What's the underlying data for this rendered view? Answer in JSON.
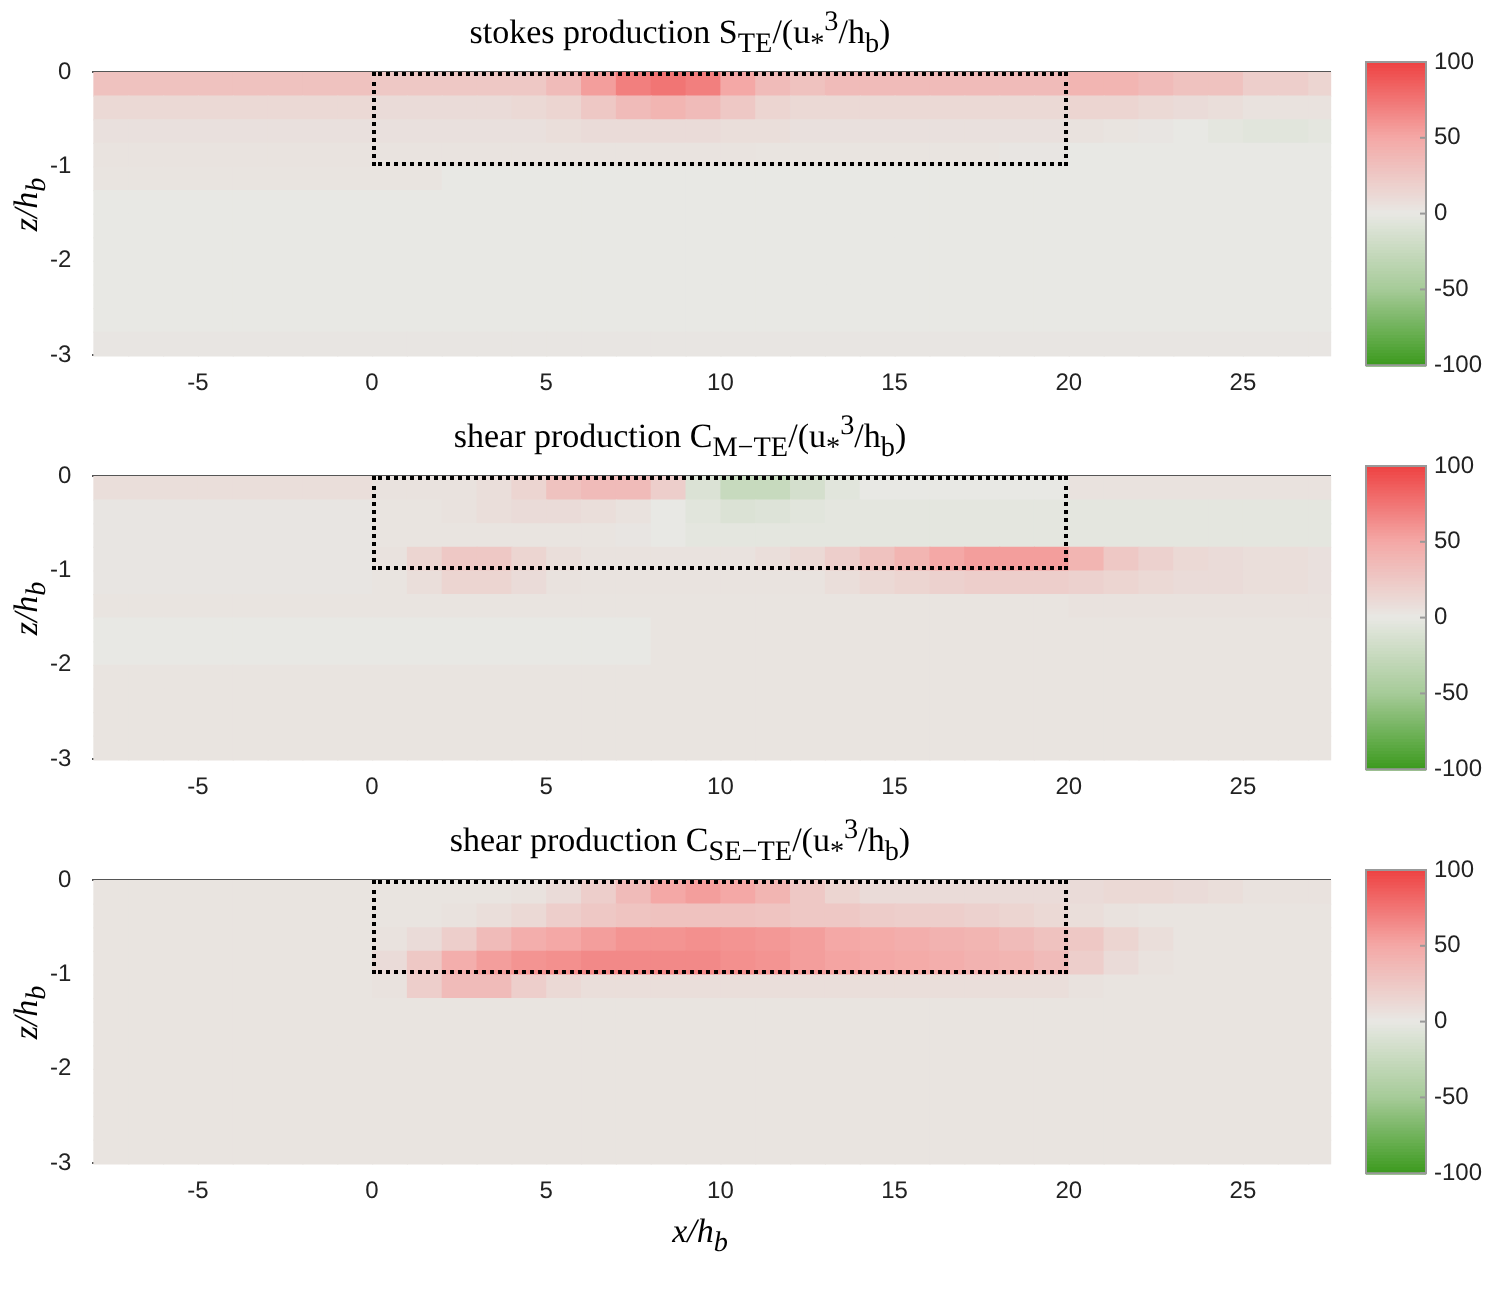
{
  "chart_data": [
    {
      "type": "heatmap",
      "title": "stokes production S$_{TE}$/(u$_{*}$$^{3}$/h$_{b}$)",
      "ylabel": "z/h$_{b}$",
      "x": [
        -7.5,
        -6.5,
        -5.5,
        -4.5,
        -3.5,
        -2.5,
        -1.5,
        -0.5,
        0.5,
        1.5,
        2.5,
        3.5,
        4.5,
        5.5,
        6.5,
        7.5,
        8.5,
        9.5,
        10.5,
        11.5,
        12.5,
        13.5,
        14.5,
        15.5,
        16.5,
        17.5,
        18.5,
        19.5,
        20.5,
        21.5,
        22.5,
        23.5,
        24.5,
        25.5,
        26.5,
        27.25
      ],
      "y": [
        -0.125,
        -0.375,
        -0.625,
        -0.875,
        -1.125,
        -1.375,
        -1.625,
        -1.875,
        -2.125,
        -2.375,
        -2.625,
        -2.875
      ],
      "cells": [
        [
          30,
          30,
          30,
          30,
          30,
          30,
          30,
          30,
          25,
          25,
          25,
          25,
          25,
          35,
          55,
          70,
          75,
          70,
          50,
          35,
          30,
          35,
          35,
          35,
          35,
          35,
          35,
          35,
          40,
          40,
          35,
          30,
          30,
          20,
          20,
          15
        ],
        [
          12,
          12,
          12,
          12,
          12,
          12,
          12,
          12,
          10,
          10,
          10,
          10,
          12,
          15,
          25,
          35,
          40,
          35,
          25,
          15,
          12,
          12,
          12,
          12,
          12,
          12,
          12,
          12,
          15,
          15,
          12,
          10,
          8,
          5,
          5,
          5
        ],
        [
          6,
          6,
          6,
          6,
          6,
          6,
          6,
          6,
          6,
          6,
          6,
          6,
          6,
          8,
          10,
          10,
          10,
          10,
          8,
          8,
          6,
          6,
          6,
          6,
          6,
          6,
          6,
          6,
          5,
          3,
          2,
          0,
          -3,
          -5,
          -5,
          -3
        ],
        [
          4,
          4,
          4,
          4,
          4,
          4,
          4,
          4,
          4,
          4,
          4,
          4,
          4,
          4,
          4,
          4,
          4,
          4,
          4,
          3,
          3,
          3,
          3,
          3,
          3,
          3,
          2,
          2,
          0,
          0,
          0,
          0,
          0,
          0,
          0,
          0
        ],
        [
          3,
          3,
          3,
          3,
          3,
          3,
          3,
          3,
          3,
          3,
          0,
          0,
          0,
          0,
          0,
          0,
          0,
          0,
          0,
          0,
          0,
          0,
          0,
          0,
          0,
          0,
          0,
          0,
          0,
          0,
          0,
          0,
          0,
          0,
          0,
          0
        ],
        [
          0,
          0,
          0,
          0,
          0,
          0,
          0,
          0,
          0,
          0,
          0,
          0,
          0,
          0,
          0,
          0,
          0,
          0,
          0,
          0,
          0,
          0,
          0,
          0,
          0,
          0,
          0,
          0,
          0,
          0,
          0,
          0,
          0,
          0,
          0,
          0
        ],
        [
          0,
          0,
          0,
          0,
          0,
          0,
          0,
          0,
          0,
          0,
          0,
          0,
          0,
          0,
          0,
          0,
          0,
          0,
          0,
          0,
          0,
          0,
          0,
          0,
          0,
          0,
          0,
          0,
          0,
          0,
          0,
          0,
          0,
          0,
          0,
          0
        ],
        [
          0,
          0,
          0,
          0,
          0,
          0,
          0,
          0,
          0,
          0,
          0,
          0,
          0,
          0,
          0,
          0,
          0,
          0,
          0,
          0,
          0,
          0,
          0,
          0,
          0,
          0,
          0,
          0,
          0,
          0,
          0,
          0,
          0,
          0,
          0,
          0
        ],
        [
          0,
          0,
          0,
          0,
          0,
          0,
          0,
          0,
          0,
          0,
          0,
          0,
          0,
          0,
          0,
          0,
          0,
          0,
          0,
          0,
          0,
          0,
          0,
          0,
          0,
          0,
          0,
          0,
          0,
          0,
          0,
          0,
          0,
          0,
          0,
          0
        ],
        [
          0,
          0,
          0,
          0,
          0,
          0,
          0,
          0,
          0,
          0,
          0,
          0,
          0,
          0,
          0,
          0,
          0,
          0,
          0,
          0,
          0,
          0,
          0,
          0,
          0,
          0,
          0,
          0,
          0,
          0,
          0,
          0,
          0,
          0,
          0,
          0
        ],
        [
          0,
          0,
          0,
          0,
          0,
          0,
          0,
          0,
          0,
          0,
          0,
          0,
          0,
          0,
          0,
          0,
          0,
          0,
          0,
          0,
          0,
          0,
          0,
          0,
          0,
          0,
          0,
          0,
          0,
          0,
          0,
          0,
          0,
          0,
          0,
          0
        ],
        [
          2,
          2,
          2,
          2,
          2,
          2,
          2,
          2,
          2,
          2,
          2,
          2,
          2,
          2,
          2,
          2,
          2,
          2,
          2,
          2,
          2,
          2,
          2,
          2,
          2,
          2,
          2,
          2,
          2,
          2,
          2,
          2,
          2,
          2,
          2,
          2
        ]
      ],
      "xlim": [
        -8,
        27.5
      ],
      "xticks": [
        -5,
        0,
        5,
        10,
        15,
        20,
        25
      ],
      "ylim": [
        -3,
        0
      ],
      "yticks": [
        -3,
        -2,
        -1,
        0
      ],
      "clim": [
        -100,
        100
      ],
      "cticks": [
        -100,
        -50,
        0,
        50,
        100
      ]
    },
    {
      "type": "heatmap",
      "title": "shear production C$_{M−TE}$/(u$_{*}$$^{3}$/h$_{b}$)",
      "ylabel": "z/h$_{b}$",
      "x": [
        -7.5,
        -6.5,
        -5.5,
        -4.5,
        -3.5,
        -2.5,
        -1.5,
        -0.5,
        0.5,
        1.5,
        2.5,
        3.5,
        4.5,
        5.5,
        6.5,
        7.5,
        8.5,
        9.5,
        10.5,
        11.5,
        12.5,
        13.5,
        14.5,
        15.5,
        16.5,
        17.5,
        18.5,
        19.5,
        20.5,
        21.5,
        22.5,
        23.5,
        24.5,
        25.5,
        26.5,
        27.25
      ],
      "y": [
        -0.125,
        -0.375,
        -0.625,
        -0.875,
        -1.125,
        -1.375,
        -1.625,
        -1.875,
        -2.125,
        -2.375,
        -2.625,
        -2.875
      ],
      "cells": [
        [
          8,
          8,
          8,
          8,
          8,
          8,
          8,
          8,
          5,
          5,
          5,
          8,
          15,
          30,
          35,
          35,
          20,
          -10,
          -25,
          -25,
          -15,
          -5,
          0,
          0,
          0,
          0,
          0,
          0,
          5,
          5,
          5,
          5,
          5,
          5,
          5,
          5
        ],
        [
          2,
          2,
          2,
          2,
          2,
          2,
          2,
          2,
          3,
          3,
          5,
          8,
          10,
          10,
          8,
          5,
          0,
          -5,
          -10,
          -8,
          -5,
          -3,
          -3,
          -3,
          -3,
          -3,
          -3,
          -3,
          -3,
          -3,
          -3,
          -3,
          -3,
          -3,
          -3,
          -3
        ],
        [
          2,
          2,
          2,
          2,
          2,
          2,
          2,
          2,
          3,
          3,
          3,
          3,
          3,
          3,
          3,
          2,
          0,
          -3,
          -3,
          -3,
          -3,
          -3,
          -3,
          -3,
          -3,
          -3,
          -3,
          -3,
          -3,
          -3,
          -3,
          -3,
          -3,
          -3,
          -3,
          -3
        ],
        [
          2,
          2,
          2,
          2,
          2,
          2,
          2,
          2,
          5,
          15,
          25,
          25,
          15,
          8,
          5,
          5,
          5,
          5,
          5,
          8,
          12,
          20,
          30,
          40,
          50,
          55,
          55,
          55,
          40,
          25,
          18,
          12,
          10,
          8,
          8,
          6
        ],
        [
          2,
          2,
          2,
          2,
          2,
          2,
          2,
          2,
          3,
          8,
          15,
          15,
          10,
          5,
          4,
          4,
          4,
          4,
          4,
          4,
          4,
          8,
          12,
          15,
          18,
          20,
          20,
          20,
          18,
          15,
          12,
          10,
          10,
          8,
          8,
          6
        ],
        [
          3,
          3,
          3,
          3,
          3,
          3,
          3,
          3,
          3,
          3,
          3,
          3,
          3,
          3,
          3,
          3,
          3,
          3,
          3,
          3,
          3,
          3,
          3,
          3,
          3,
          3,
          3,
          3,
          5,
          5,
          5,
          5,
          5,
          5,
          5,
          5
        ],
        [
          0,
          0,
          0,
          0,
          0,
          0,
          0,
          0,
          0,
          0,
          0,
          0,
          0,
          0,
          0,
          0,
          3,
          3,
          3,
          3,
          3,
          3,
          3,
          3,
          3,
          3,
          3,
          3,
          3,
          3,
          3,
          3,
          3,
          3,
          3,
          3
        ],
        [
          0,
          0,
          0,
          0,
          0,
          0,
          0,
          0,
          0,
          0,
          0,
          0,
          0,
          0,
          0,
          0,
          3,
          3,
          3,
          3,
          3,
          3,
          3,
          3,
          3,
          3,
          3,
          3,
          3,
          3,
          3,
          3,
          3,
          3,
          3,
          3
        ],
        [
          3,
          3,
          3,
          3,
          3,
          3,
          3,
          3,
          3,
          3,
          3,
          3,
          3,
          3,
          3,
          3,
          3,
          3,
          3,
          3,
          3,
          3,
          3,
          3,
          3,
          3,
          3,
          3,
          3,
          3,
          3,
          3,
          3,
          3,
          3,
          3
        ],
        [
          3,
          3,
          3,
          3,
          3,
          3,
          3,
          3,
          3,
          3,
          3,
          3,
          3,
          3,
          3,
          3,
          3,
          3,
          3,
          3,
          3,
          3,
          3,
          3,
          3,
          3,
          3,
          3,
          3,
          3,
          3,
          3,
          3,
          3,
          3,
          3
        ],
        [
          3,
          3,
          3,
          3,
          3,
          3,
          3,
          3,
          3,
          3,
          3,
          3,
          3,
          3,
          3,
          3,
          3,
          3,
          3,
          3,
          3,
          3,
          3,
          3,
          3,
          3,
          3,
          3,
          3,
          3,
          3,
          3,
          3,
          3,
          3,
          3
        ],
        [
          3,
          3,
          3,
          3,
          3,
          3,
          3,
          3,
          3,
          3,
          3,
          3,
          3,
          3,
          3,
          3,
          3,
          3,
          3,
          3,
          3,
          3,
          3,
          3,
          3,
          3,
          3,
          3,
          3,
          3,
          3,
          3,
          3,
          3,
          3,
          3
        ]
      ],
      "xlim": [
        -8,
        27.5
      ],
      "xticks": [
        -5,
        0,
        5,
        10,
        15,
        20,
        25
      ],
      "ylim": [
        -3,
        0
      ],
      "yticks": [
        -3,
        -2,
        -1,
        0
      ],
      "clim": [
        -100,
        100
      ],
      "cticks": [
        -100,
        -50,
        0,
        50,
        100
      ]
    },
    {
      "type": "heatmap",
      "title": "shear production C$_{SE−TE}$/(u$_{*}$$^{3}$/h$_{b}$)",
      "xlabel": "x/h$_{b}$",
      "ylabel": "z/h$_{b}$",
      "x": [
        -7.5,
        -6.5,
        -5.5,
        -4.5,
        -3.5,
        -2.5,
        -1.5,
        -0.5,
        0.5,
        1.5,
        2.5,
        3.5,
        4.5,
        5.5,
        6.5,
        7.5,
        8.5,
        9.5,
        10.5,
        11.5,
        12.5,
        13.5,
        14.5,
        15.5,
        16.5,
        17.5,
        18.5,
        19.5,
        20.5,
        21.5,
        22.5,
        23.5,
        24.5,
        25.5,
        26.5,
        27.25
      ],
      "y": [
        -0.125,
        -0.375,
        -0.625,
        -0.875,
        -1.125,
        -1.375,
        -1.625,
        -1.875,
        -2.125,
        -2.375,
        -2.625,
        -2.875
      ],
      "cells": [
        [
          3,
          3,
          3,
          3,
          3,
          3,
          3,
          3,
          3,
          3,
          3,
          3,
          5,
          10,
          20,
          35,
          50,
          55,
          50,
          40,
          25,
          15,
          10,
          10,
          10,
          10,
          10,
          10,
          10,
          12,
          12,
          10,
          8,
          5,
          5,
          5
        ],
        [
          3,
          3,
          3,
          3,
          3,
          3,
          3,
          3,
          3,
          3,
          5,
          8,
          12,
          20,
          25,
          28,
          30,
          30,
          30,
          28,
          25,
          25,
          22,
          20,
          20,
          18,
          15,
          12,
          8,
          5,
          3,
          3,
          3,
          3,
          3,
          3
        ],
        [
          3,
          3,
          3,
          3,
          3,
          3,
          3,
          3,
          5,
          10,
          20,
          35,
          45,
          50,
          55,
          60,
          60,
          62,
          60,
          58,
          55,
          50,
          48,
          45,
          42,
          40,
          35,
          30,
          25,
          15,
          8,
          3,
          3,
          3,
          3,
          3
        ],
        [
          3,
          3,
          3,
          3,
          3,
          3,
          3,
          3,
          10,
          25,
          45,
          55,
          60,
          62,
          65,
          65,
          65,
          65,
          62,
          60,
          55,
          52,
          50,
          48,
          45,
          42,
          40,
          35,
          20,
          10,
          5,
          3,
          3,
          3,
          3,
          3
        ],
        [
          3,
          3,
          3,
          3,
          3,
          3,
          3,
          3,
          5,
          20,
          35,
          35,
          20,
          12,
          8,
          8,
          8,
          8,
          8,
          8,
          8,
          8,
          8,
          8,
          8,
          8,
          8,
          8,
          5,
          3,
          3,
          3,
          3,
          3,
          3,
          3
        ],
        [
          3,
          3,
          3,
          3,
          3,
          3,
          3,
          3,
          3,
          3,
          3,
          3,
          3,
          3,
          3,
          3,
          3,
          3,
          3,
          3,
          3,
          3,
          3,
          3,
          3,
          3,
          3,
          3,
          3,
          3,
          3,
          3,
          3,
          3,
          3,
          3
        ],
        [
          3,
          3,
          3,
          3,
          3,
          3,
          3,
          3,
          3,
          3,
          3,
          3,
          3,
          3,
          3,
          3,
          3,
          3,
          3,
          3,
          3,
          3,
          3,
          3,
          3,
          3,
          3,
          3,
          3,
          3,
          3,
          3,
          3,
          3,
          3,
          3
        ],
        [
          3,
          3,
          3,
          3,
          3,
          3,
          3,
          3,
          3,
          3,
          3,
          3,
          3,
          3,
          3,
          3,
          3,
          3,
          3,
          3,
          3,
          3,
          3,
          3,
          3,
          3,
          3,
          3,
          3,
          3,
          3,
          3,
          3,
          3,
          3,
          3
        ],
        [
          3,
          3,
          3,
          3,
          3,
          3,
          3,
          3,
          3,
          3,
          3,
          3,
          3,
          3,
          3,
          3,
          3,
          3,
          3,
          3,
          3,
          3,
          3,
          3,
          3,
          3,
          3,
          3,
          3,
          3,
          3,
          3,
          3,
          3,
          3,
          3
        ],
        [
          3,
          3,
          3,
          3,
          3,
          3,
          3,
          3,
          3,
          3,
          3,
          3,
          3,
          3,
          3,
          3,
          3,
          3,
          3,
          3,
          3,
          3,
          3,
          3,
          3,
          3,
          3,
          3,
          3,
          3,
          3,
          3,
          3,
          3,
          3,
          3
        ],
        [
          3,
          3,
          3,
          3,
          3,
          3,
          3,
          3,
          3,
          3,
          3,
          3,
          3,
          3,
          3,
          3,
          3,
          3,
          3,
          3,
          3,
          3,
          3,
          3,
          3,
          3,
          3,
          3,
          3,
          3,
          3,
          3,
          3,
          3,
          3,
          3
        ],
        [
          3,
          3,
          3,
          3,
          3,
          3,
          3,
          3,
          3,
          3,
          3,
          3,
          3,
          3,
          3,
          3,
          3,
          3,
          3,
          3,
          3,
          3,
          3,
          3,
          3,
          3,
          3,
          3,
          3,
          3,
          3,
          3,
          3,
          3,
          3,
          3
        ]
      ],
      "xlim": [
        -8,
        27.5
      ],
      "xticks": [
        -5,
        0,
        5,
        10,
        15,
        20,
        25
      ],
      "ylim": [
        -3,
        0
      ],
      "yticks": [
        -3,
        -2,
        -1,
        0
      ],
      "clim": [
        -100,
        100
      ],
      "cticks": [
        -100,
        -50,
        0,
        50,
        100
      ]
    }
  ]
}
